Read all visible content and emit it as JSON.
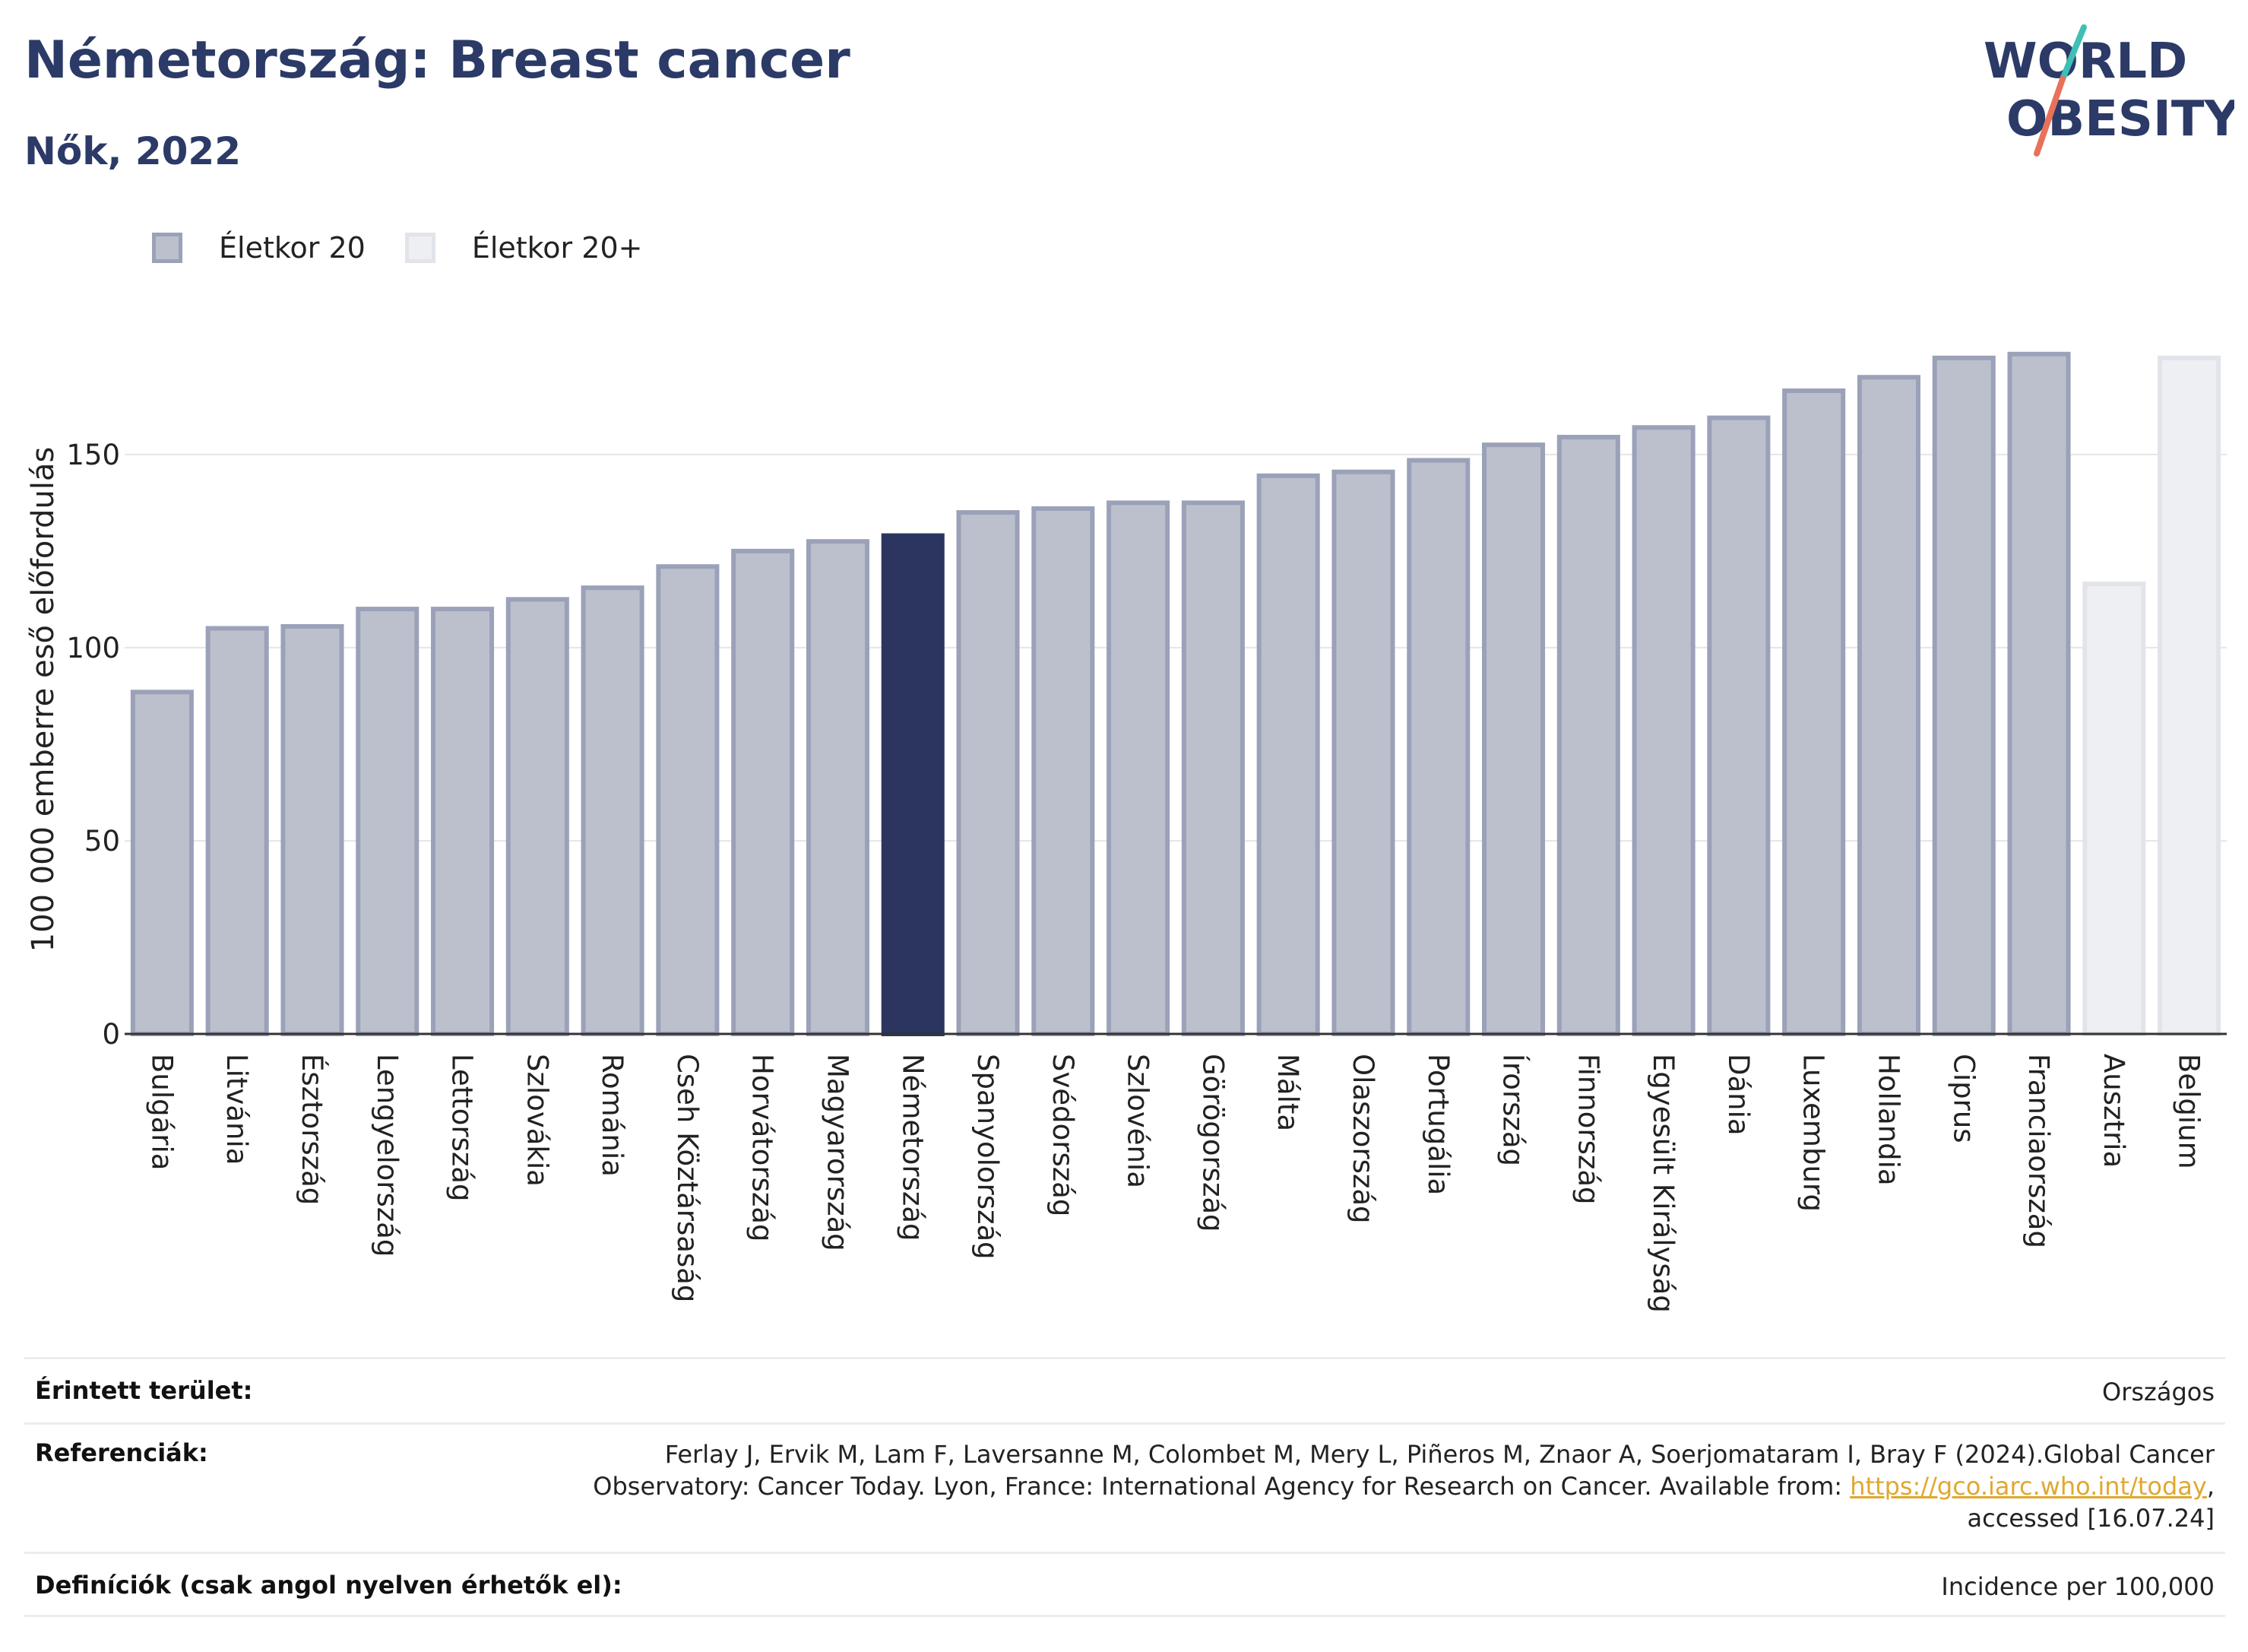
{
  "header": {
    "title": "Németország: Breast cancer",
    "subtitle": "Nők, 2022"
  },
  "logo": {
    "line1": "WORLD",
    "line2": "OBESITY",
    "colors": {
      "text": "#2b3a67",
      "slash_top": "#3fbfb5",
      "slash_bottom": "#e8715a"
    }
  },
  "legend": [
    {
      "label": "Életkor 20",
      "color": "#bcc0cc",
      "border": "#9ba1b8"
    },
    {
      "label": "Életkor 20+",
      "color": "#eeeff3",
      "border": "#e2e4ea"
    }
  ],
  "colors": {
    "bar_fill": "#bcc0cc",
    "bar_border": "#9ba1b8",
    "highlight": "#2b3560",
    "plus_fill": "#eeeff3",
    "plus_border": "#e2e4ea",
    "grid": "#e6e6e6",
    "axis": "#333333"
  },
  "chart_data": {
    "type": "bar",
    "ylabel": "100 000 emberre eső előfordulás",
    "ylim": [
      0,
      185
    ],
    "yticks": [
      0,
      50,
      100,
      150
    ],
    "grid": "horizontal",
    "legend_position": "top-left",
    "highlight": "Németország",
    "series": [
      {
        "name": "Életkor 20",
        "categories": [
          "Bulgária",
          "Litvánia",
          "Észtország",
          "Lengyelország",
          "Lettország",
          "Szlovákia",
          "Románia",
          "Cseh Köztársaság",
          "Horvátország",
          "Magyarország",
          "Németország",
          "Spanyolország",
          "Svédország",
          "Szlovénia",
          "Görögország",
          "Málta",
          "Olaszország",
          "Portugália",
          "Írország",
          "Finnország",
          "Egyesült Királyság",
          "Dánia",
          "Luxemburg",
          "Hollandia",
          "Ciprus",
          "Franciaország"
        ]
      },
      {
        "name": "Életkor 20+",
        "categories": [
          "Ausztria",
          "Belgium"
        ]
      }
    ],
    "categories": [
      "Bulgária",
      "Litvánia",
      "Észtország",
      "Lengyelország",
      "Lettország",
      "Szlovákia",
      "Románia",
      "Cseh Köztársaság",
      "Horvátország",
      "Magyarország",
      "Németország",
      "Spanyolország",
      "Svédország",
      "Szlovénia",
      "Görögország",
      "Málta",
      "Olaszország",
      "Portugália",
      "Írország",
      "Finnország",
      "Egyesült Királyság",
      "Dánia",
      "Luxemburg",
      "Hollandia",
      "Ciprus",
      "Franciaország",
      "Ausztria",
      "Belgium"
    ],
    "values": [
      88.5,
      105,
      105.5,
      110,
      110,
      112.5,
      115.5,
      121,
      125,
      127.5,
      129,
      135,
      136,
      137.5,
      137.5,
      144.5,
      145.5,
      148.5,
      152.5,
      154.5,
      157,
      159.5,
      166.5,
      170,
      175,
      176,
      116.5,
      175
    ],
    "series_of": [
      "Életkor 20",
      "Életkor 20",
      "Életkor 20",
      "Életkor 20",
      "Életkor 20",
      "Életkor 20",
      "Életkor 20",
      "Életkor 20",
      "Életkor 20",
      "Életkor 20",
      "Életkor 20",
      "Életkor 20",
      "Életkor 20",
      "Életkor 20",
      "Életkor 20",
      "Életkor 20",
      "Életkor 20",
      "Életkor 20",
      "Életkor 20",
      "Életkor 20",
      "Életkor 20",
      "Életkor 20",
      "Életkor 20",
      "Életkor 20",
      "Életkor 20",
      "Életkor 20",
      "Életkor 20+",
      "Életkor 20+"
    ]
  },
  "info": [
    {
      "key": "Érintett terület:",
      "value": "Országos"
    },
    {
      "key": "Referenciák:",
      "value_lines": [
        "Ferlay J, Ervik M, Lam F, Laversanne M, Colombet M, Mery L, Piñeros M, Znaor A, Soerjomataram I, Bray F (2024).Global Cancer",
        "Observatory: Cancer Today. Lyon, France: International Agency for Research on Cancer. Available from: "
      ],
      "link": "https://gco.iarc.who.int/today",
      "after_link": ",",
      "last_line": "accessed [16.07.24]"
    },
    {
      "key": "Definíciók (csak angol nyelven érhetők el):",
      "value": "Incidence per 100,000"
    }
  ]
}
